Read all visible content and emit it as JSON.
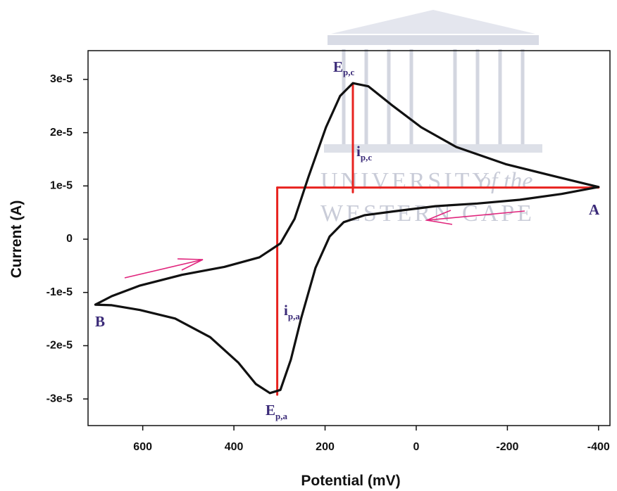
{
  "chart_data": {
    "type": "line",
    "x_label": "Potential (mV)",
    "y_label": "Current (A)",
    "xlim": [
      720,
      -425
    ],
    "ylim": [
      -3.5e-05,
      3.54e-05
    ],
    "xticks": [
      600,
      400,
      200,
      0,
      -200,
      -400
    ],
    "yticks": [
      {
        "value": 3e-05,
        "label": "3e-5"
      },
      {
        "value": 2e-05,
        "label": "2e-5"
      },
      {
        "value": 1e-05,
        "label": "1e-5"
      },
      0,
      {
        "value": -1e-05,
        "label": "-1e-5"
      },
      {
        "value": -2e-05,
        "label": "-2e-5"
      },
      {
        "value": -3e-05,
        "label": "-3e-5"
      }
    ],
    "grid": false,
    "series": [
      {
        "color": "#111111",
        "x": [
          -400,
          -319,
          -227,
          -134,
          -42,
          51,
          113,
          159,
          190,
          221,
          252,
          275,
          298,
          321,
          352,
          390,
          452,
          529,
          606,
          668,
          704,
          668,
          606,
          514,
          421,
          344,
          298,
          267,
          236,
          198,
          167,
          139,
          105,
          51,
          -11,
          -88,
          -196,
          -304,
          -400
        ],
        "values": [
          9.8e-06,
          8.5e-06,
          7.4e-06,
          6.7e-06,
          6.2e-06,
          5.2e-06,
          4.5e-06,
          3.2e-06,
          5e-07,
          -5.4e-06,
          -1.47e-05,
          -2.26e-05,
          -2.83e-05,
          -2.89e-05,
          -2.72e-05,
          -2.32e-05,
          -1.84e-05,
          -1.49e-05,
          -1.33e-05,
          -1.24e-05,
          -1.23e-05,
          -1.07e-05,
          -8.7e-06,
          -6.7e-06,
          -5.2e-06,
          -3.4e-06,
          -8e-07,
          3.8e-06,
          1.18e-05,
          2.1e-05,
          2.69e-05,
          2.93e-05,
          2.87e-05,
          2.5e-05,
          2.1e-05,
          1.73e-05,
          1.41e-05,
          1.18e-05,
          9.8e-06
        ]
      }
    ],
    "guide_color": "#e8231f",
    "guides": [
      {
        "x": [
          305,
          -400
        ],
        "values": [
          9.7e-06,
          9.7e-06
        ]
      },
      {
        "x": [
          305,
          305
        ],
        "values": [
          9.7e-06,
          -2.92e-05
        ]
      },
      {
        "x": [
          139,
          139
        ],
        "values": [
          2.93e-05,
          8.8e-06
        ]
      }
    ],
    "annotations": [
      {
        "text": "A"
      },
      {
        "text": "B"
      },
      {
        "text": "E",
        "sub": "p,c"
      },
      {
        "text": "i",
        "sub": "p,c"
      },
      {
        "text": "i",
        "sub": "p,a"
      },
      {
        "text": "E",
        "sub": "p,a"
      }
    ],
    "watermark": [
      "UNIVERSITY",
      "of the",
      "WESTERN CAPE"
    ]
  }
}
